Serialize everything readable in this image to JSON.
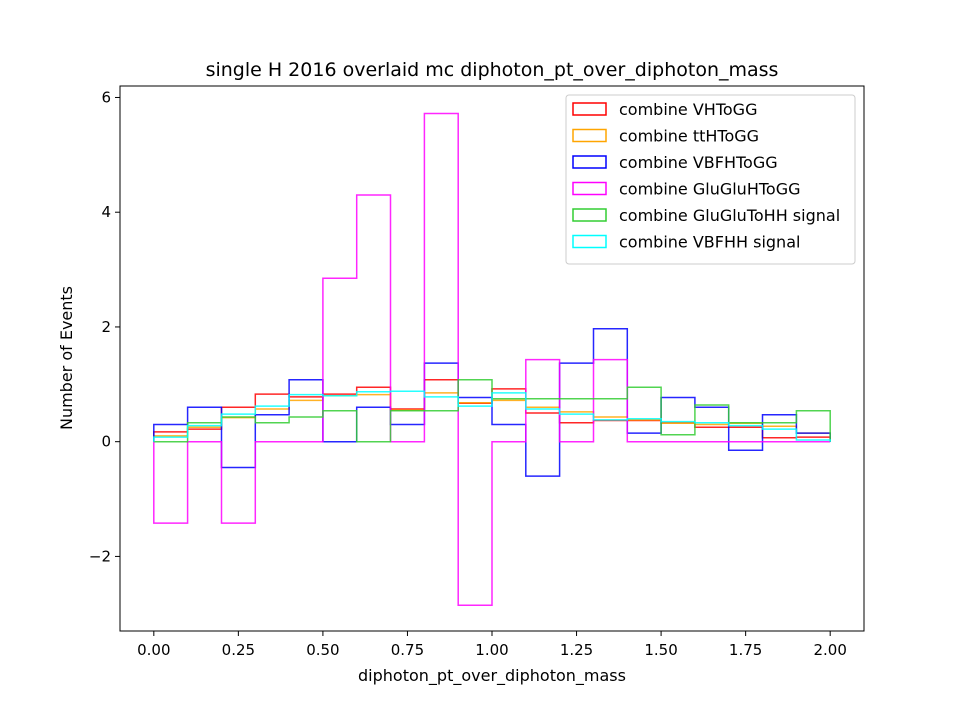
{
  "chart_data": {
    "type": "step-histogram",
    "title": "single H 2016 overlaid mc diphoton_pt_over_diphoton_mass",
    "xlabel": "diphoton_pt_over_diphoton_mass",
    "ylabel": "Number of Events",
    "xlim": [
      -0.1,
      2.1
    ],
    "ylim": [
      -3.3,
      6.2
    ],
    "xticks": [
      0.0,
      0.25,
      0.5,
      0.75,
      1.0,
      1.25,
      1.5,
      1.75,
      2.0
    ],
    "xtick_labels": [
      "0.00",
      "0.25",
      "0.50",
      "0.75",
      "1.00",
      "1.25",
      "1.50",
      "1.75",
      "2.00"
    ],
    "yticks": [
      -2,
      0,
      2,
      4,
      6
    ],
    "ytick_labels": [
      "−2",
      "0",
      "2",
      "4",
      "6"
    ],
    "bin_edges": [
      0.0,
      0.1,
      0.2,
      0.3,
      0.4,
      0.5,
      0.6,
      0.7,
      0.8,
      0.9,
      1.0,
      1.1,
      1.2,
      1.3,
      1.4,
      1.5,
      1.6,
      1.7,
      1.8,
      1.9,
      2.0
    ],
    "legend_position": "upper-right",
    "grid": false,
    "series": [
      {
        "name": "combine VHToGG",
        "color": "#ff0000",
        "values": [
          0.17,
          0.22,
          0.6,
          0.83,
          0.78,
          0.83,
          0.95,
          0.57,
          1.08,
          0.67,
          0.92,
          0.5,
          0.33,
          0.37,
          0.37,
          0.33,
          0.25,
          0.25,
          0.07,
          0.08
        ]
      },
      {
        "name": "combine ttHToGG",
        "color": "#ffa500",
        "values": [
          0.1,
          0.25,
          0.42,
          0.57,
          0.72,
          0.8,
          0.82,
          0.55,
          0.85,
          0.68,
          0.72,
          0.6,
          0.52,
          0.43,
          0.38,
          0.32,
          0.3,
          0.32,
          0.27,
          0.15
        ]
      },
      {
        "name": "combine VBFHToGG",
        "color": "#0000ff",
        "values": [
          0.3,
          0.6,
          -0.45,
          0.47,
          1.08,
          0.0,
          0.6,
          0.3,
          1.37,
          0.77,
          0.3,
          -0.6,
          1.37,
          1.97,
          0.15,
          0.77,
          0.6,
          -0.15,
          0.47,
          0.15
        ]
      },
      {
        "name": "combine GluGluHToGG",
        "color": "#ff00ff",
        "values": [
          -1.42,
          0.0,
          -1.42,
          0.0,
          0.0,
          2.85,
          4.3,
          0.0,
          5.72,
          -2.85,
          0.0,
          1.43,
          0.0,
          1.43,
          0.0,
          0.0,
          0.0,
          0.0,
          0.0,
          0.0
        ]
      },
      {
        "name": "combine GluGluToHH signal",
        "color": "#32cd32",
        "values": [
          0.0,
          0.33,
          0.43,
          0.33,
          0.43,
          0.54,
          0.0,
          0.54,
          0.54,
          1.08,
          0.75,
          0.75,
          0.75,
          0.75,
          0.95,
          0.12,
          0.64,
          0.33,
          0.33,
          0.54
        ]
      },
      {
        "name": "combine VBFHH signal",
        "color": "#00ffff",
        "values": [
          0.08,
          0.28,
          0.48,
          0.62,
          0.82,
          0.8,
          0.87,
          0.88,
          0.78,
          0.62,
          0.85,
          0.57,
          0.48,
          0.38,
          0.4,
          0.35,
          0.33,
          0.28,
          0.22,
          0.03
        ]
      }
    ]
  }
}
